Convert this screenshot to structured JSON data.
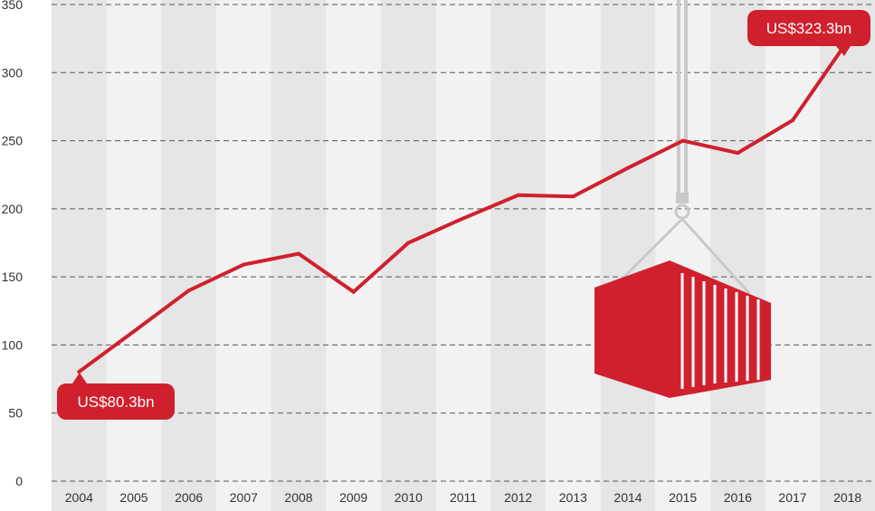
{
  "chart_data": {
    "type": "line",
    "x": [
      "2004",
      "2005",
      "2006",
      "2007",
      "2008",
      "2009",
      "2010",
      "2011",
      "2012",
      "2013",
      "2014",
      "2015",
      "2016",
      "2017",
      "2018"
    ],
    "series": [
      {
        "values": [
          80.3,
          110,
          140,
          159,
          167,
          139,
          175,
          193,
          210,
          209,
          230,
          250,
          241,
          265,
          323.3
        ]
      }
    ],
    "ylim": [
      0,
      350
    ],
    "yticks": [
      0,
      50,
      100,
      150,
      200,
      250,
      300,
      350
    ],
    "grid": "horizontal dashed",
    "annotations": {
      "start": "US$80.3bn",
      "end": "US$323.3bn"
    },
    "colors": {
      "line": "#d0202e",
      "band_dark": "#e6e6e6",
      "band_light": "#f2f2f2",
      "grid": "#555555"
    }
  }
}
